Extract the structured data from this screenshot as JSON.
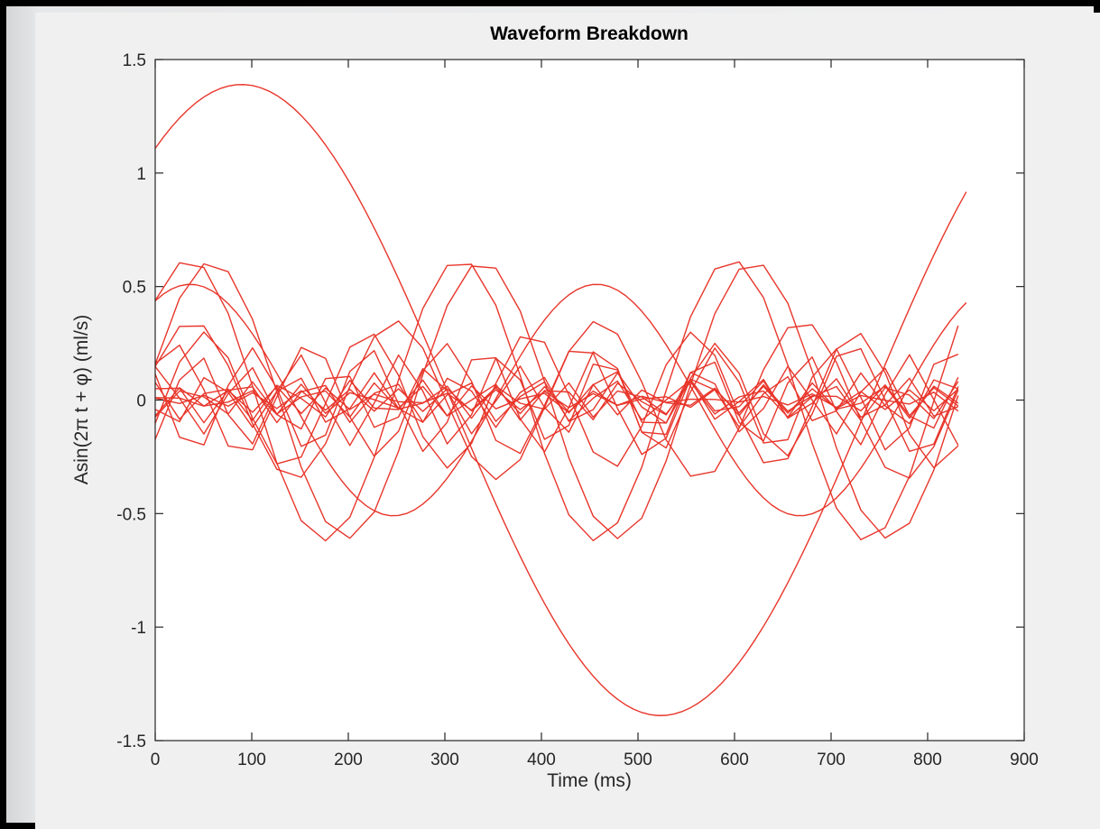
{
  "chart_data": {
    "type": "line",
    "title": "Waveform Breakdown",
    "xlabel": "Time (ms)",
    "ylabel": "Asin(2π t + φ) (ml/s)",
    "xlim": [
      0,
      900
    ],
    "ylim": [
      -1.5,
      1.5
    ],
    "x_ticks": [
      0,
      100,
      200,
      300,
      400,
      500,
      600,
      700,
      800,
      900
    ],
    "y_ticks": [
      -1.5,
      -1,
      -0.5,
      0,
      0.5,
      1,
      1.5
    ],
    "grid": false,
    "box": true,
    "line_color": "#e8362b",
    "series": [
      {
        "amplitude": 1.39,
        "period": 868,
        "phase_deg": 52.9,
        "start": 0,
        "step": 8.4,
        "end": 841.8
      },
      {
        "amplitude": 0.51,
        "period": 421,
        "phase_deg": 59.0,
        "start": 0,
        "step": 8.4,
        "end": 841.8
      },
      {
        "amplitude": 0.62,
        "period": 280.6,
        "phase_deg": 45.0,
        "start": 0,
        "step": 25.2,
        "end": 841.8
      },
      {
        "amplitude": 0.61,
        "period": 280.6,
        "phase_deg": 15.0,
        "start": 0,
        "step": 25.2,
        "end": 841.8
      },
      {
        "amplitude": 0.35,
        "period": 210.5,
        "phase_deg": 25.0,
        "start": 0,
        "step": 25.2,
        "end": 841.8
      },
      {
        "amplitude": 0.3,
        "period": 168.4,
        "phase_deg": -20.0,
        "start": 0,
        "step": 25.2,
        "end": 841.8
      },
      {
        "amplitude": 0.25,
        "period": 140.3,
        "phase_deg": 40.0,
        "start": 0,
        "step": 25.2,
        "end": 841.8
      },
      {
        "amplitude": 0.23,
        "period": 120.3,
        "phase_deg": 150.0,
        "start": 0,
        "step": 25.2,
        "end": 841.8
      },
      {
        "amplitude": 0.2,
        "period": 105.2,
        "phase_deg": -60.0,
        "start": 0,
        "step": 25.2,
        "end": 841.8
      },
      {
        "amplitude": 0.15,
        "period": 93.5,
        "phase_deg": 80.0,
        "start": 0,
        "step": 25.2,
        "end": 841.8
      },
      {
        "amplitude": 0.12,
        "period": 84.2,
        "phase_deg": 200.0,
        "start": 0,
        "step": 25.2,
        "end": 841.8
      },
      {
        "amplitude": 0.1,
        "period": 76.5,
        "phase_deg": 30.0,
        "start": 0,
        "step": 25.2,
        "end": 841.8
      },
      {
        "amplitude": 0.09,
        "period": 70.2,
        "phase_deg": 120.0,
        "start": 0,
        "step": 25.2,
        "end": 841.8
      },
      {
        "amplitude": 0.08,
        "period": 64.8,
        "phase_deg": 250.0,
        "start": 0,
        "step": 25.2,
        "end": 841.8
      },
      {
        "amplitude": 0.07,
        "period": 60.1,
        "phase_deg": -100.0,
        "start": 0,
        "step": 25.2,
        "end": 841.8
      },
      {
        "amplitude": 0.06,
        "period": 56.1,
        "phase_deg": 10.0,
        "start": 0,
        "step": 25.2,
        "end": 841.8
      },
      {
        "amplitude": 0.05,
        "period": 52.6,
        "phase_deg": 170.0,
        "start": 0,
        "step": 25.2,
        "end": 841.8
      }
    ]
  }
}
